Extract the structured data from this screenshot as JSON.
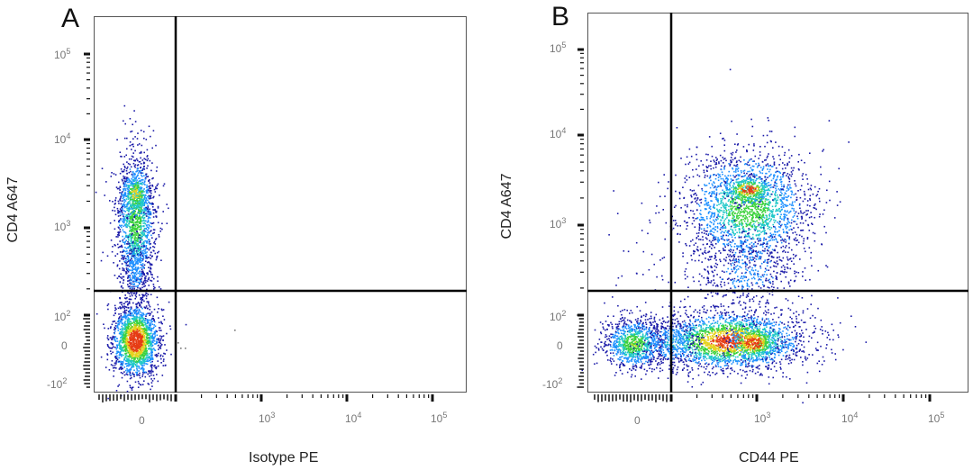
{
  "chart_data": [
    {
      "type": "scatter",
      "panel": "A",
      "title": "",
      "xlabel": "Isotype PE",
      "ylabel": "CD4 A647",
      "x_scale": "biexponential",
      "y_scale": "biexponential",
      "x_ticks": [
        "0",
        "10^3",
        "10^4",
        "10^5"
      ],
      "y_ticks": [
        "-10^2",
        "0",
        "10^2",
        "10^3",
        "10^4",
        "10^5"
      ],
      "gates": {
        "vertical_x": "~150",
        "horizontal_y": "~180"
      },
      "populations": [
        {
          "name": "CD4+ isotype-",
          "x_center": "0",
          "y_center": "~1500",
          "density": "high"
        },
        {
          "name": "CD4- isotype-",
          "x_center": "0",
          "y_center": "0",
          "density": "very high"
        }
      ],
      "quadrants": {
        "upper_right": "empty",
        "lower_right": "nearly empty"
      },
      "grid": false,
      "legend": null
    },
    {
      "type": "scatter",
      "panel": "B",
      "title": "",
      "xlabel": "CD44 PE",
      "ylabel": "CD4 A647",
      "x_scale": "biexponential",
      "y_scale": "biexponential",
      "x_ticks": [
        "0",
        "10^3",
        "10^4",
        "10^5"
      ],
      "y_ticks": [
        "-10^2",
        "0",
        "10^2",
        "10^3",
        "10^4",
        "10^5"
      ],
      "gates": {
        "vertical_x": "~150",
        "horizontal_y": "~180"
      },
      "populations": [
        {
          "name": "CD4+ CD44+",
          "x_center": "~800",
          "y_center": "~2000",
          "density": "high"
        },
        {
          "name": "CD4- CD44+",
          "x_center": "~800",
          "y_center": "0",
          "density": "very high"
        },
        {
          "name": "CD4- CD44-",
          "x_center": "0",
          "y_center": "0",
          "density": "moderate"
        }
      ],
      "grid": false,
      "legend": null
    }
  ],
  "panels": {
    "a": {
      "letter": "A",
      "xlabel": "Isotype PE",
      "ylabel": "CD4 A647",
      "xticks": {
        "t0": "0",
        "t3": "10",
        "t3e": "3",
        "t4": "10",
        "t4e": "4",
        "t5": "10",
        "t5e": "5"
      },
      "yticks": {
        "m2": "-10",
        "m2e": "2",
        "z": "0",
        "p2": "10",
        "p2e": "2",
        "p3": "10",
        "p3e": "3",
        "p4": "10",
        "p4e": "4",
        "p5": "10",
        "p5e": "5"
      }
    },
    "b": {
      "letter": "B",
      "xlabel": "CD44 PE",
      "ylabel": "CD4 A647",
      "xticks": {
        "t0": "0",
        "t3": "10",
        "t3e": "3",
        "t4": "10",
        "t4e": "4",
        "t5": "10",
        "t5e": "5"
      },
      "yticks": {
        "m2": "-10",
        "m2e": "2",
        "z": "0",
        "p2": "10",
        "p2e": "2",
        "p3": "10",
        "p3e": "3",
        "p4": "10",
        "p4e": "4",
        "p5": "10",
        "p5e": "5"
      }
    }
  },
  "colors": {
    "low": "#1a1aa8",
    "mid": "#1e90ff",
    "cyan": "#20c8c8",
    "green": "#3cd23c",
    "yellow": "#e6d21e",
    "high": "#e63c14",
    "gate": "#000000"
  }
}
